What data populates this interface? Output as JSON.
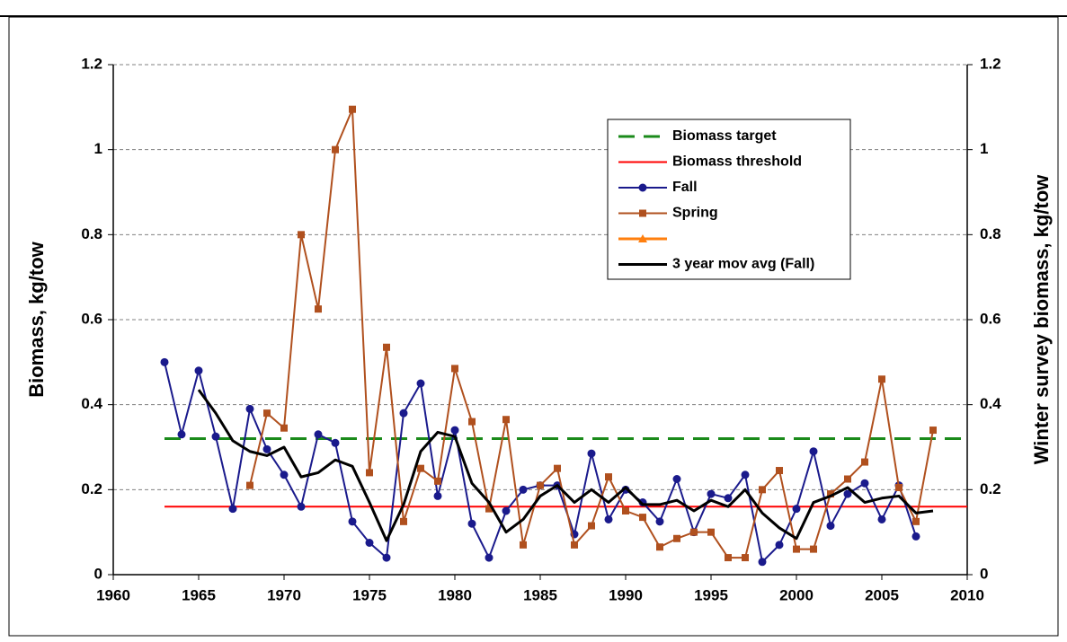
{
  "chart_data": {
    "type": "line",
    "y_label": "Biomass, kg/tow",
    "y2_label": "Winter survey biomass, kg/tow",
    "x": [
      1963,
      1964,
      1965,
      1966,
      1967,
      1968,
      1969,
      1970,
      1971,
      1972,
      1973,
      1974,
      1975,
      1976,
      1977,
      1978,
      1979,
      1980,
      1981,
      1982,
      1983,
      1984,
      1985,
      1986,
      1987,
      1988,
      1989,
      1990,
      1991,
      1992,
      1993,
      1994,
      1995,
      1996,
      1997,
      1998,
      1999,
      2000,
      2001,
      2002,
      2003,
      2004,
      2005,
      2006,
      2007,
      2008
    ],
    "series": [
      {
        "name": "Fall",
        "color": "#1a1a8c",
        "marker": "circle",
        "values": [
          0.5,
          0.33,
          0.48,
          0.325,
          0.155,
          0.39,
          0.295,
          0.235,
          0.16,
          0.33,
          0.31,
          0.125,
          0.075,
          0.04,
          0.38,
          0.45,
          0.185,
          0.34,
          0.12,
          0.04,
          0.15,
          0.2,
          0.21,
          0.21,
          0.095,
          0.285,
          0.13,
          0.2,
          0.17,
          0.125,
          0.225,
          0.1,
          0.19,
          0.18,
          0.235,
          0.03,
          0.07,
          0.155,
          0.29,
          0.115,
          0.19,
          0.215,
          0.13,
          0.21,
          0.09,
          null
        ]
      },
      {
        "name": "Spring",
        "color": "#b0501e",
        "marker": "square",
        "values": [
          null,
          null,
          null,
          null,
          null,
          0.21,
          0.38,
          0.345,
          0.8,
          0.625,
          1.0,
          1.095,
          0.24,
          0.535,
          0.125,
          0.25,
          0.22,
          0.485,
          0.36,
          0.155,
          0.365,
          0.07,
          0.21,
          0.25,
          0.07,
          0.115,
          0.23,
          0.15,
          0.135,
          0.065,
          0.085,
          0.1,
          0.1,
          0.04,
          0.04,
          0.2,
          0.245,
          0.06,
          0.06,
          0.19,
          0.225,
          0.265,
          0.46,
          0.205,
          0.125,
          0.34
        ]
      },
      {
        "name": "3 year mov avg (Fall)",
        "color": "#000000",
        "marker": "none",
        "values": [
          null,
          null,
          0.435,
          0.38,
          0.315,
          0.29,
          0.28,
          0.3,
          0.23,
          0.24,
          0.27,
          0.255,
          0.17,
          0.08,
          0.165,
          0.29,
          0.335,
          0.325,
          0.215,
          0.17,
          0.1,
          0.13,
          0.185,
          0.21,
          0.17,
          0.2,
          0.17,
          0.205,
          0.165,
          0.165,
          0.175,
          0.15,
          0.175,
          0.16,
          0.2,
          0.145,
          0.11,
          0.085,
          0.17,
          0.185,
          0.205,
          0.17,
          0.18,
          0.185,
          0.145,
          0.15
        ]
      }
    ],
    "hlines": [
      {
        "name": "Biomass target",
        "color": "#1a8a1a",
        "dashed": true,
        "value": 0.32
      },
      {
        "name": "Biomass threshold",
        "color": "#ff0000",
        "dashed": false,
        "value": 0.16
      }
    ],
    "xlim": [
      1960,
      2010
    ],
    "xticks": [
      1960,
      1965,
      1970,
      1975,
      1980,
      1985,
      1990,
      1995,
      2000,
      2005,
      2010
    ],
    "ylim": [
      0,
      1.2
    ],
    "yticks": [
      0,
      0.2,
      0.4,
      0.6,
      0.8,
      1,
      1.2
    ],
    "y2lim": [
      0,
      1.2
    ],
    "y2ticks": [
      0,
      0.2,
      0.4,
      0.6,
      0.8,
      1,
      1.2
    ],
    "grid": true,
    "legend": "upper-right"
  }
}
